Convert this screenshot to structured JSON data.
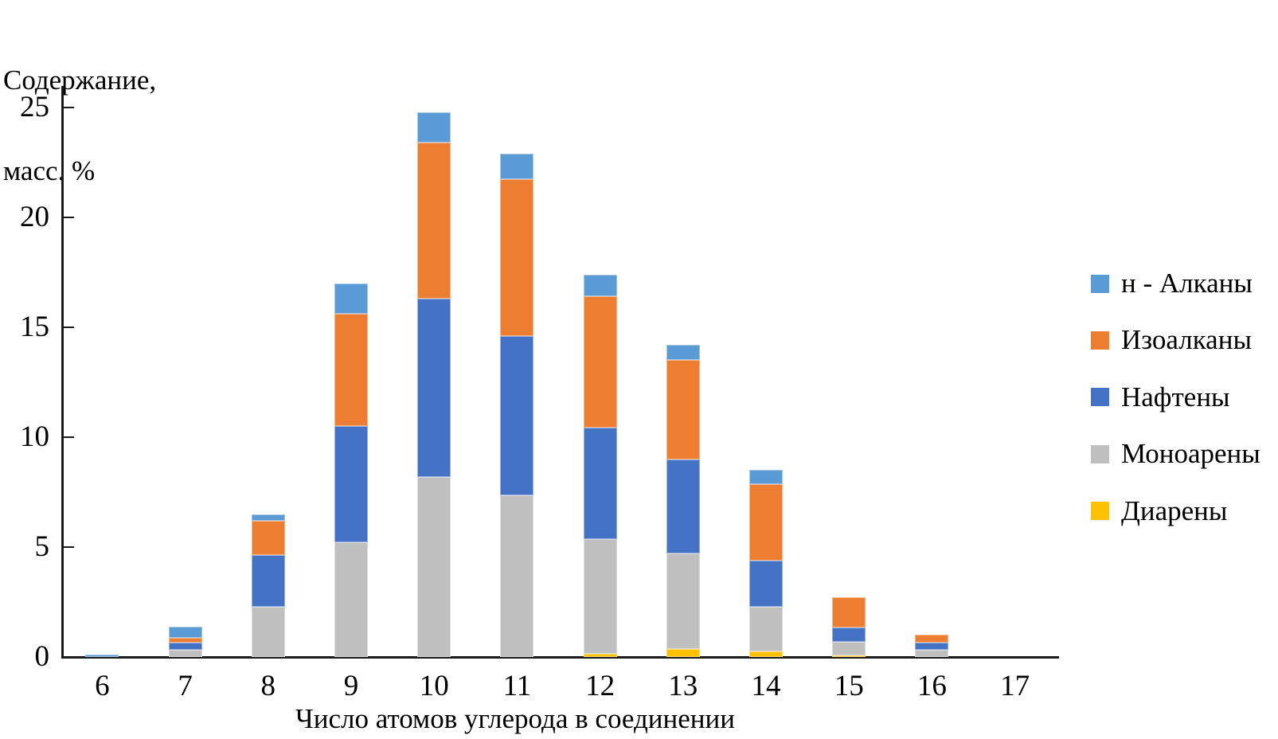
{
  "y_axis_title": {
    "line1": "Содержание,",
    "line2": "масс. %"
  },
  "chart_data": {
    "type": "bar",
    "stacked": true,
    "title": "",
    "xlabel": "Число атомов углерода в соединении",
    "ylabel": "Содержание, масс. %",
    "categories": [
      6,
      7,
      8,
      9,
      10,
      11,
      12,
      13,
      14,
      15,
      16,
      17
    ],
    "ylim": [
      0,
      25
    ],
    "yticks": [
      0,
      5,
      10,
      15,
      20,
      25
    ],
    "grid": false,
    "legend_position": "right",
    "legend_order_top_to_bottom": [
      "н - Алканы",
      "Изоалканы",
      "Нафтены",
      "Моноарены",
      "Диарены"
    ],
    "series": [
      {
        "name": "Диарены",
        "color": "#FFC000",
        "values": [
          0,
          0,
          0,
          0,
          0,
          0,
          0.15,
          0.35,
          0.25,
          0.07,
          0,
          0
        ]
      },
      {
        "name": "Моноарены",
        "color": "#BFBFBF",
        "values": [
          0,
          0.33,
          2.3,
          5.2,
          8.2,
          7.35,
          5.2,
          4.35,
          2.05,
          0.62,
          0.33,
          0
        ]
      },
      {
        "name": "Нафтены",
        "color": "#4472C4",
        "values": [
          0,
          0.33,
          2.35,
          5.3,
          8.1,
          7.25,
          5.1,
          4.3,
          2.1,
          0.66,
          0.33,
          0
        ]
      },
      {
        "name": "Изоалканы",
        "color": "#ED7D31",
        "values": [
          0,
          0.21,
          1.55,
          5.1,
          7.1,
          7.15,
          5.95,
          4.5,
          3.45,
          1.35,
          0.34,
          0
        ]
      },
      {
        "name": "н - Алканы",
        "color": "#5B9BD5",
        "values": [
          0.1,
          0.52,
          0.3,
          1.4,
          1.4,
          1.15,
          1.0,
          0.7,
          0.65,
          0,
          0,
          0
        ]
      }
    ],
    "totals": [
      0.1,
      1.39,
      6.5,
      17.0,
      24.8,
      22.9,
      17.4,
      14.2,
      8.5,
      2.7,
      1.0,
      0
    ]
  }
}
